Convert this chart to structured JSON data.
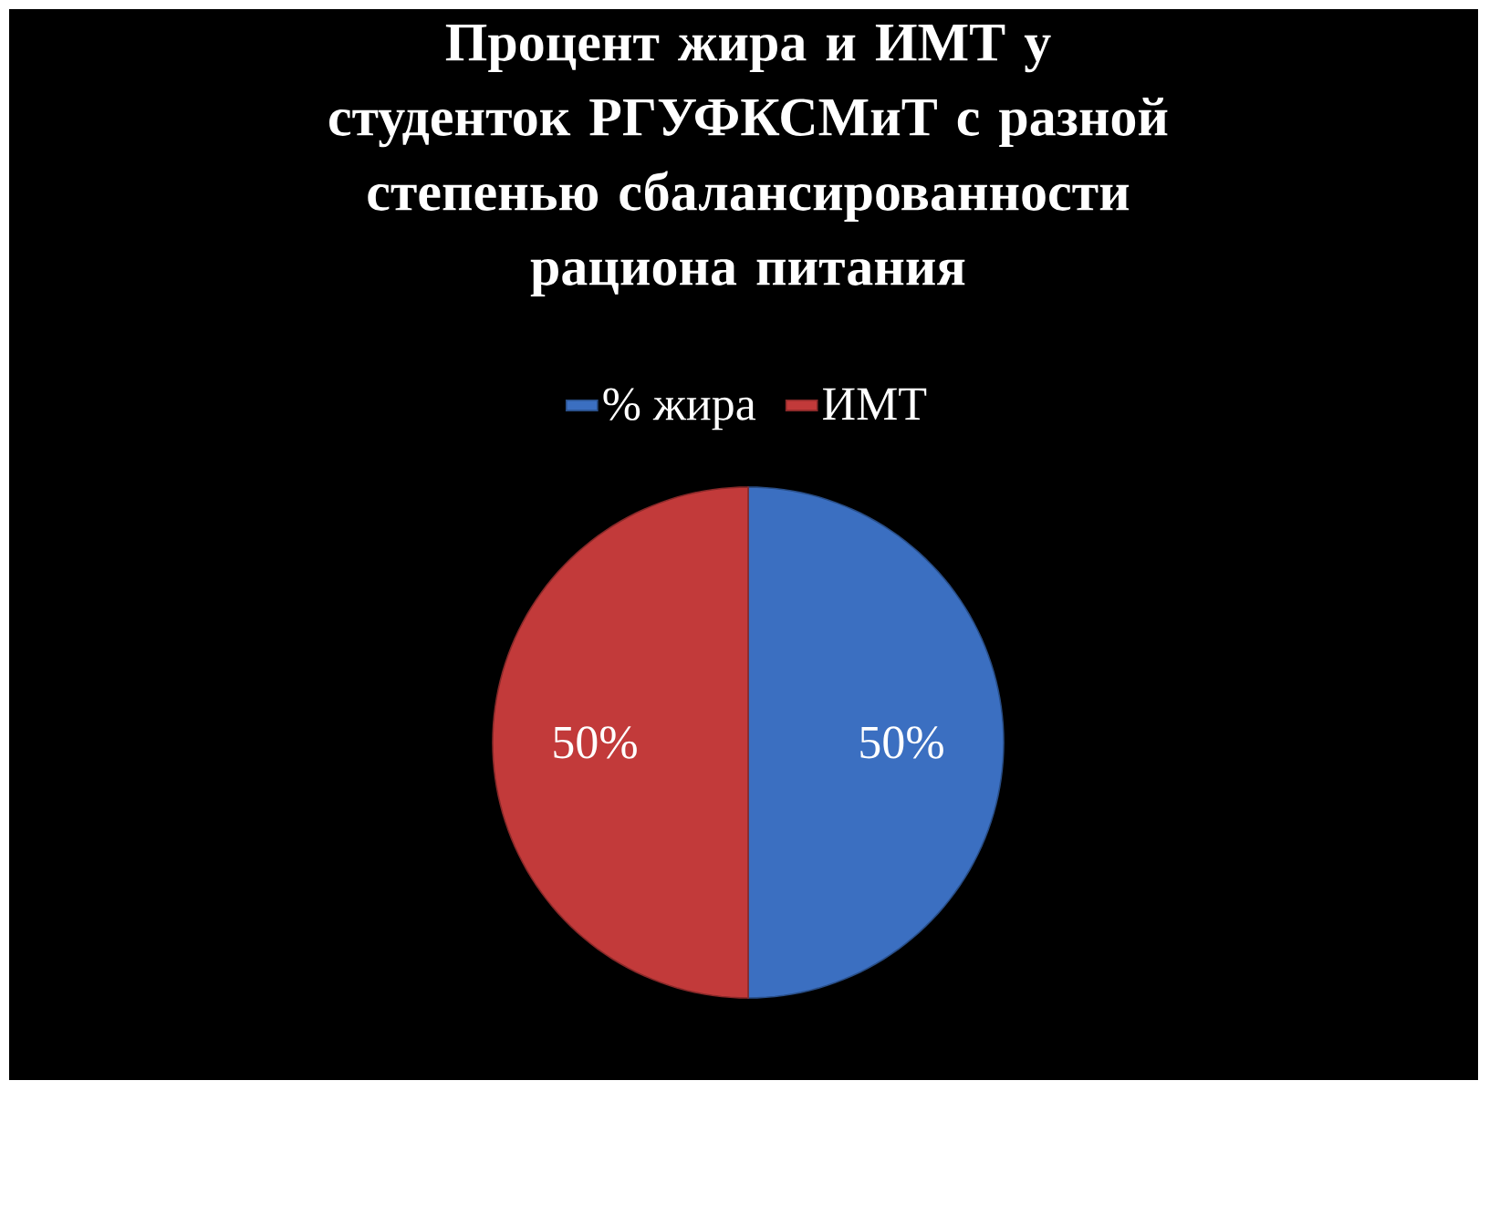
{
  "chart_data": {
    "type": "pie",
    "title": "Процент жира и ИМТ у студенток РГУФКСМиТ с разной степенью сбалансированности рациона питания",
    "categories": [
      "% жира",
      "ИМТ"
    ],
    "values": [
      50,
      50
    ],
    "colors": [
      "#3b6fc1",
      "#c23a3a"
    ],
    "value_labels": [
      "50%",
      "50%"
    ],
    "legend": "top"
  }
}
